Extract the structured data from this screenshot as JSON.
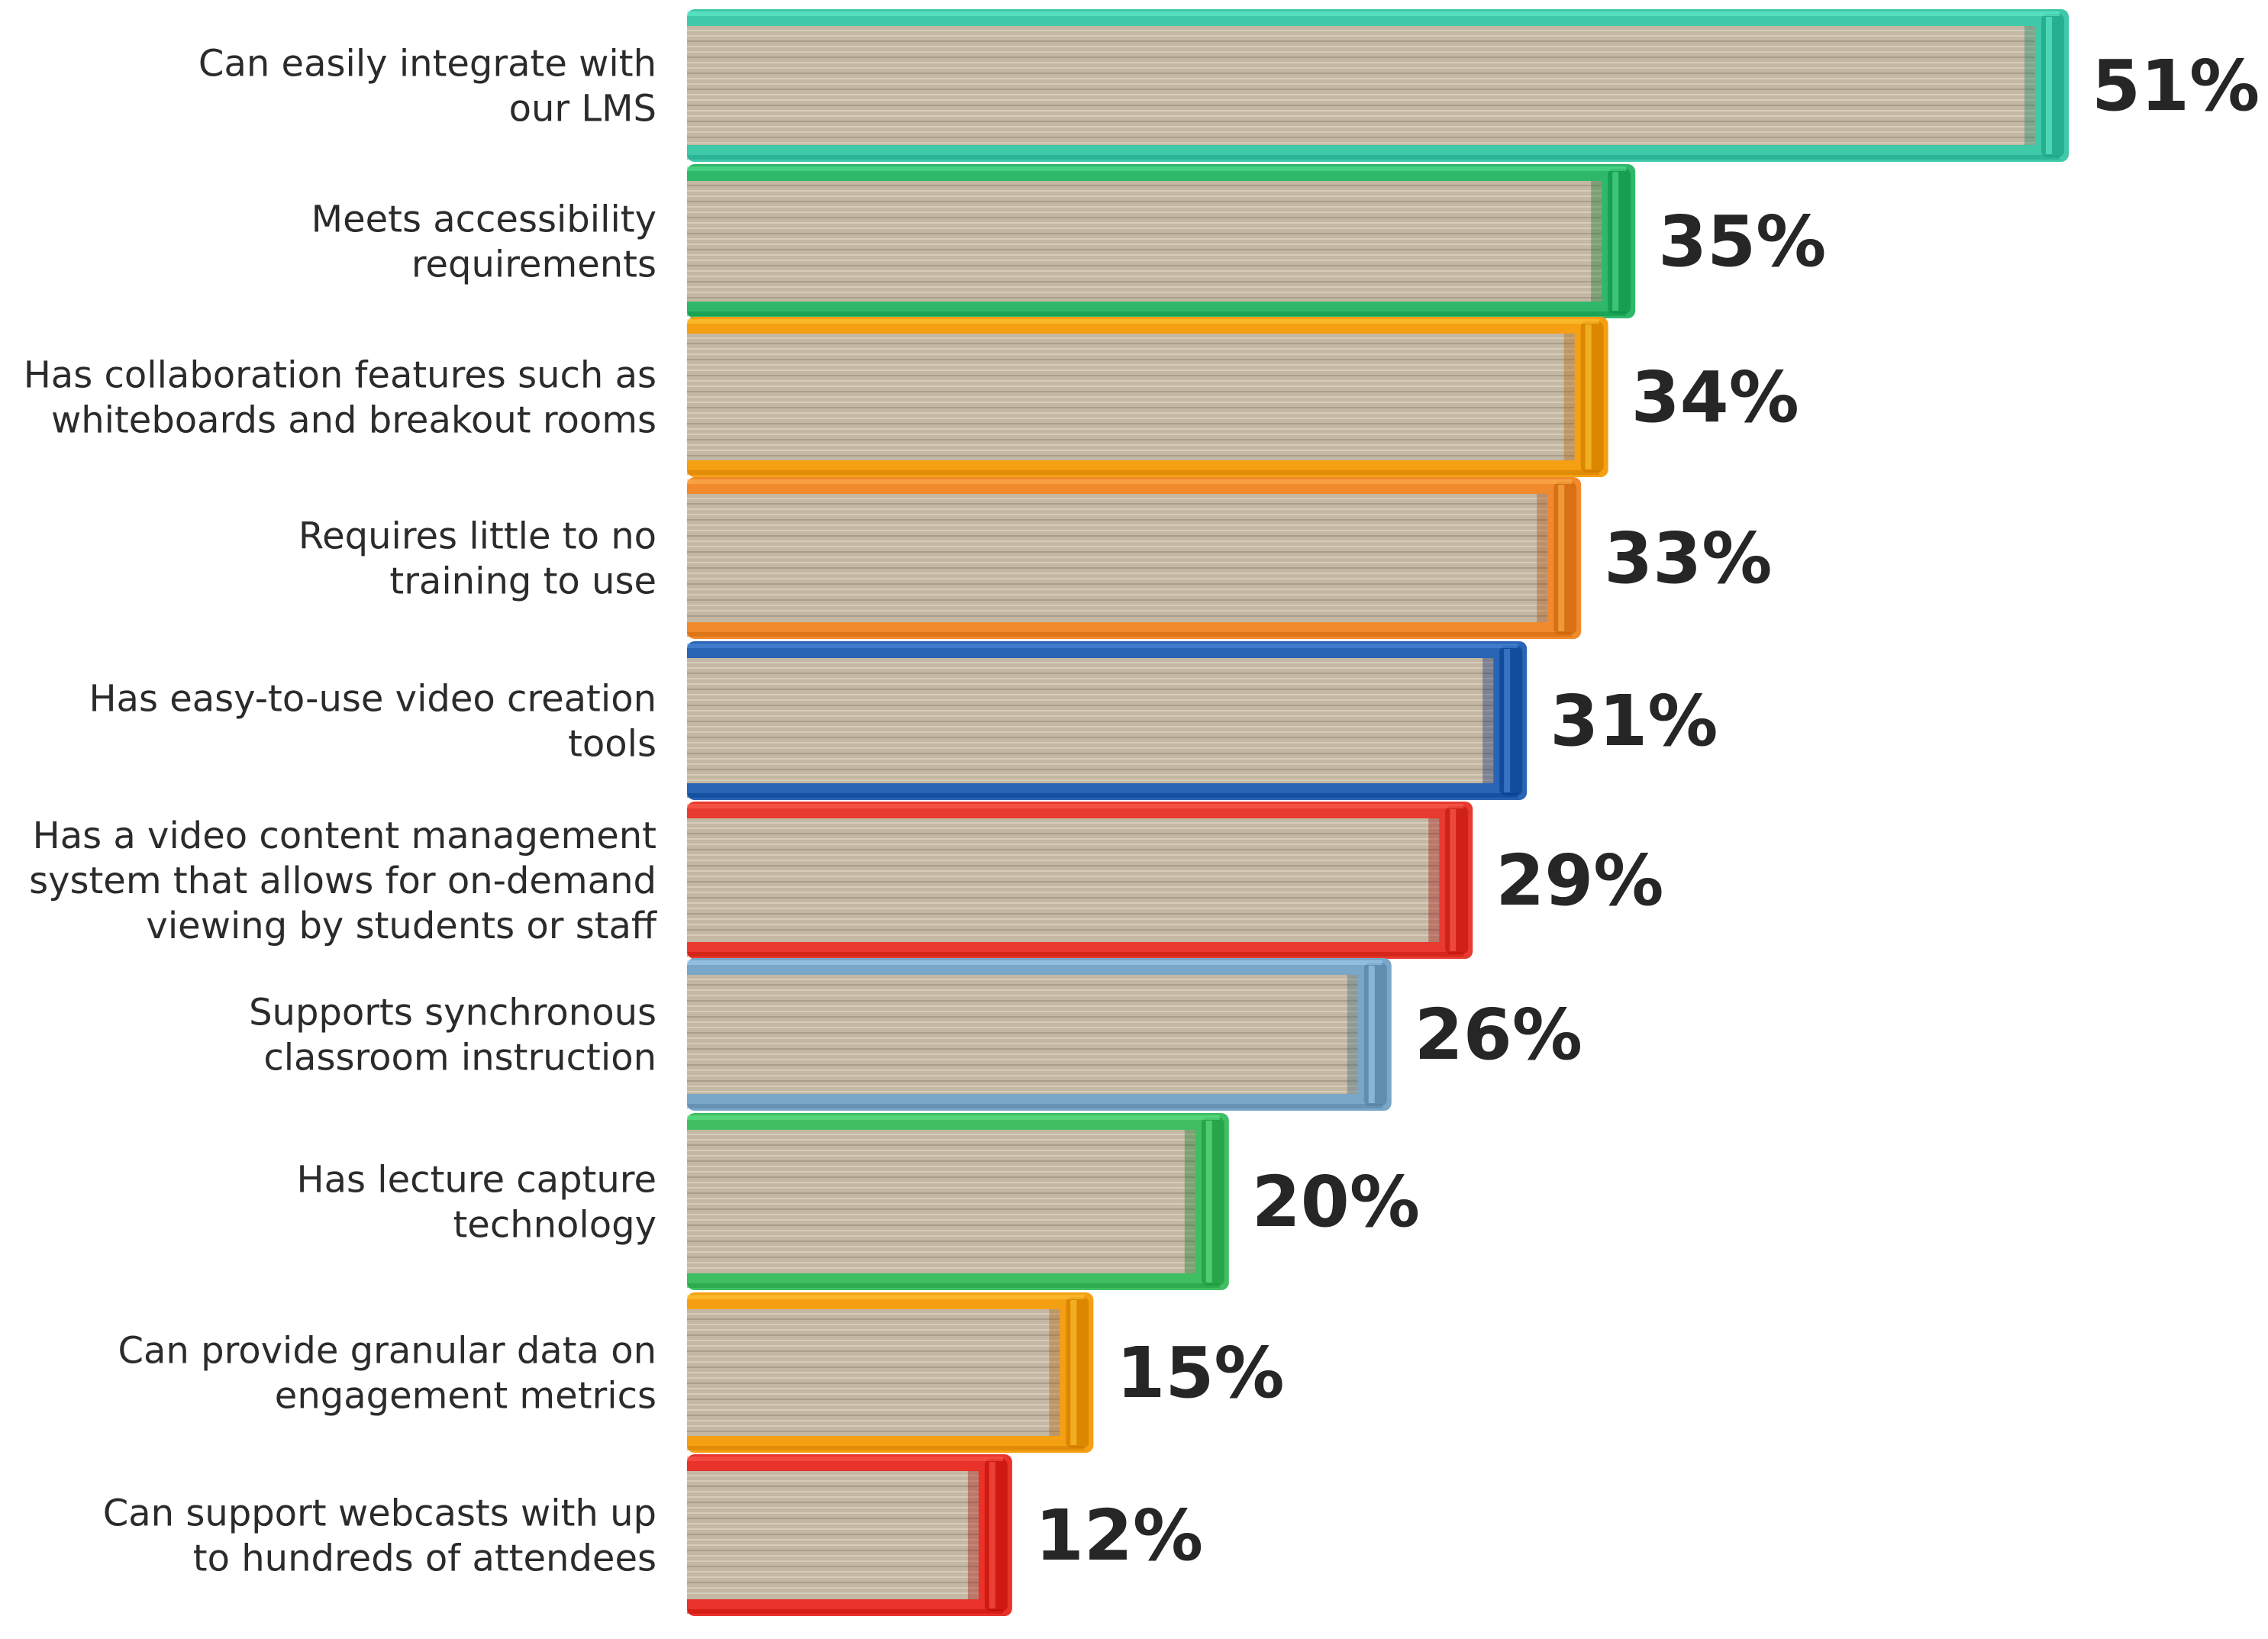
{
  "chart_data": {
    "type": "bar",
    "orientation": "horizontal",
    "title": "",
    "xlabel": "",
    "ylabel": "",
    "grid": false,
    "xlim": [
      0,
      100
    ],
    "categories": [
      [
        "Can easily integrate with",
        "our LMS"
      ],
      [
        "Meets accessibility",
        "requirements"
      ],
      [
        "Has collaboration features such as",
        "whiteboards and breakout rooms"
      ],
      [
        "Requires little to no",
        "training to use"
      ],
      [
        "Has easy-to-use video creation",
        "tools"
      ],
      [
        "Has a video content management",
        "system that allows for on-demand",
        "viewing by students or staff"
      ],
      [
        "Supports synchronous",
        "classroom instruction"
      ],
      [
        "Has lecture capture",
        "technology"
      ],
      [
        "Can provide granular data on",
        "engagement metrics"
      ],
      [
        "Can support webcasts with up",
        "to hundreds of attendees"
      ]
    ],
    "values": [
      51,
      35,
      34,
      33,
      31,
      29,
      26,
      20,
      15,
      12
    ],
    "value_labels": [
      "51%",
      "35%",
      "34%",
      "33%",
      "31%",
      "29%",
      "26%",
      "20%",
      "15%",
      "12%"
    ],
    "bar_colors": [
      "#3fc9a8",
      "#2fb86a",
      "#f5a012",
      "#f08a2c",
      "#2a64b4",
      "#e83a2e",
      "#7aa6c8",
      "#3fbf62",
      "#f5a012",
      "#e8322a"
    ]
  }
}
